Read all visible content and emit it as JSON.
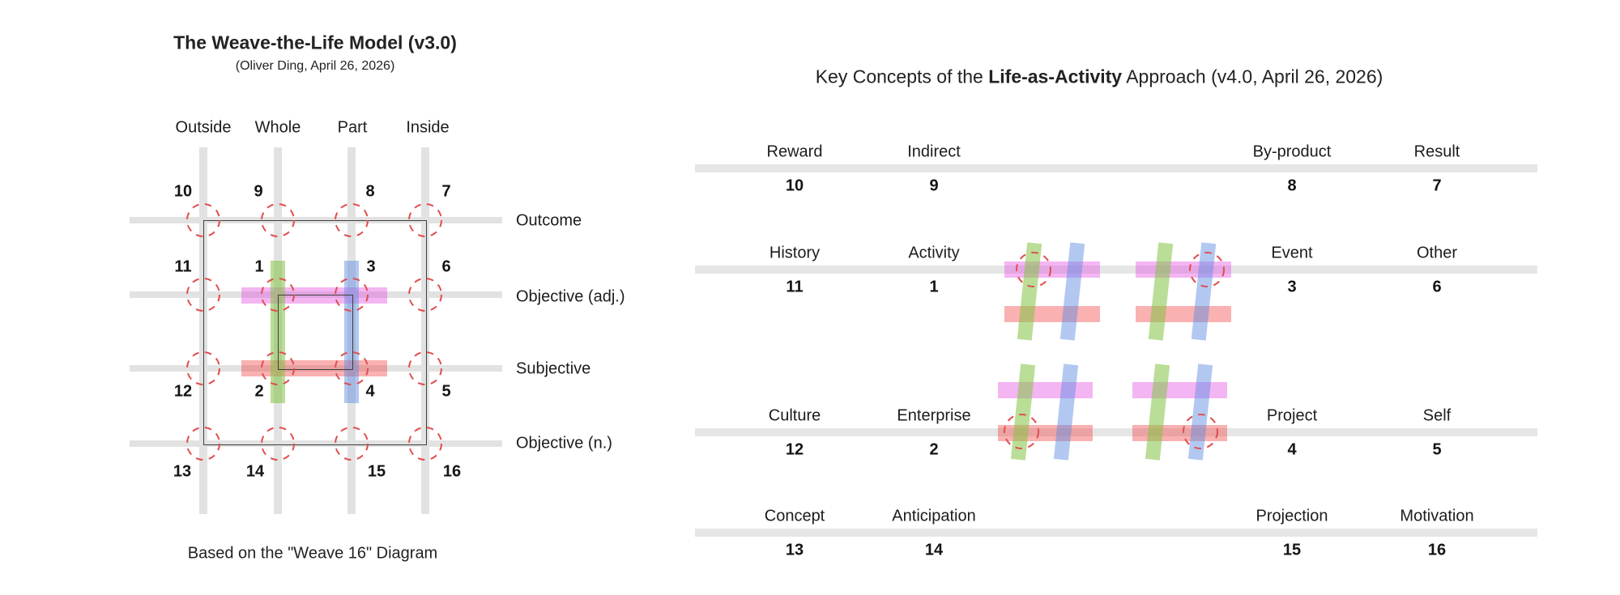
{
  "left_panel": {
    "title": "The Weave-the-Life Model (v3.0)",
    "subtitle": "(Oliver Ding, April 26, 2026)",
    "caption": "Based on the \"Weave 16\" Diagram",
    "column_labels": [
      "Outside",
      "Whole",
      "Part",
      "Inside"
    ],
    "row_labels": [
      "Outcome",
      "Objective (adj.)",
      "Subjective",
      "Objective (n.)"
    ],
    "numbers": [
      {
        "value": "10",
        "col": 0,
        "row": 0
      },
      {
        "value": "9",
        "col": 1,
        "row": 0
      },
      {
        "value": "8",
        "col": 2,
        "row": 0
      },
      {
        "value": "7",
        "col": 3,
        "row": 0
      },
      {
        "value": "11",
        "col": 0,
        "row": 1
      },
      {
        "value": "1",
        "col": 1,
        "row": 1
      },
      {
        "value": "3",
        "col": 2,
        "row": 1
      },
      {
        "value": "6",
        "col": 3,
        "row": 1
      },
      {
        "value": "12",
        "col": 0,
        "row": 2
      },
      {
        "value": "2",
        "col": 1,
        "row": 2
      },
      {
        "value": "4",
        "col": 2,
        "row": 2
      },
      {
        "value": "5",
        "col": 3,
        "row": 2
      },
      {
        "value": "13",
        "col": 0,
        "row": 3
      },
      {
        "value": "14",
        "col": 1,
        "row": 3
      },
      {
        "value": "15",
        "col": 2,
        "row": 3
      },
      {
        "value": "16",
        "col": 3,
        "row": 3
      }
    ]
  },
  "right_panel": {
    "title": {
      "prefix": "Key Concepts of the ",
      "bold": "Life-as-Activity",
      "suffix": " Approach (v4.0, April 26, 2026)"
    },
    "rows": [
      {
        "items": [
          {
            "label": "Reward",
            "number": "10"
          },
          {
            "label": "Indirect",
            "number": "9"
          },
          {
            "label": "By-product",
            "number": "8"
          },
          {
            "label": "Result",
            "number": "7"
          }
        ]
      },
      {
        "items": [
          {
            "label": "History",
            "number": "11"
          },
          {
            "label": "Activity",
            "number": "1"
          },
          {
            "label": "Event",
            "number": "3"
          },
          {
            "label": "Other",
            "number": "6"
          }
        ]
      },
      {
        "items": [
          {
            "label": "Culture",
            "number": "12"
          },
          {
            "label": "Enterprise",
            "number": "2"
          },
          {
            "label": "Project",
            "number": "4"
          },
          {
            "label": "Self",
            "number": "5"
          }
        ]
      },
      {
        "items": [
          {
            "label": "Concept",
            "number": "13"
          },
          {
            "label": "Anticipation",
            "number": "14"
          },
          {
            "label": "Projection",
            "number": "15"
          },
          {
            "label": "Motivation",
            "number": "16"
          }
        ]
      }
    ]
  },
  "colors": {
    "grid_gray": "#e2e2e2",
    "right_line_gray": "#e6e6e6",
    "green": "rgba(130,195,65,0.55)",
    "blue": "rgba(95,140,225,0.48)",
    "magenta": "rgba(228,70,224,0.40)",
    "red": "rgba(242,60,60,0.40)",
    "dashed_red": "#e14e4e",
    "frame_dark": "#3f3f3f"
  }
}
